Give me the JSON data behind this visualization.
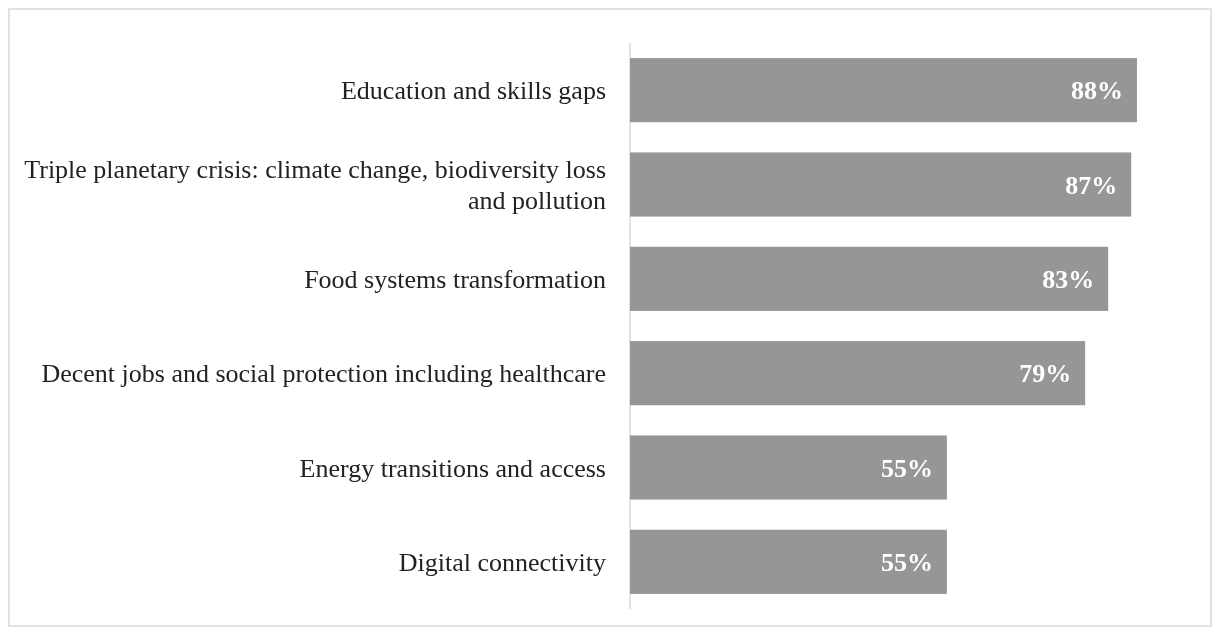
{
  "chart_data": {
    "type": "bar",
    "orientation": "horizontal",
    "categories": [
      "Education and skills gaps",
      "Triple planetary crisis: climate change, biodiversity loss and pollution",
      "Food systems transformation",
      "Decent jobs and social protection including healthcare",
      "Energy transitions and access",
      "Digital connectivity"
    ],
    "values": [
      88,
      87,
      83,
      79,
      55,
      55
    ],
    "value_labels": [
      "88%",
      "87%",
      "83%",
      "79%",
      "55%",
      "55%"
    ],
    "color": "#969696"
  }
}
